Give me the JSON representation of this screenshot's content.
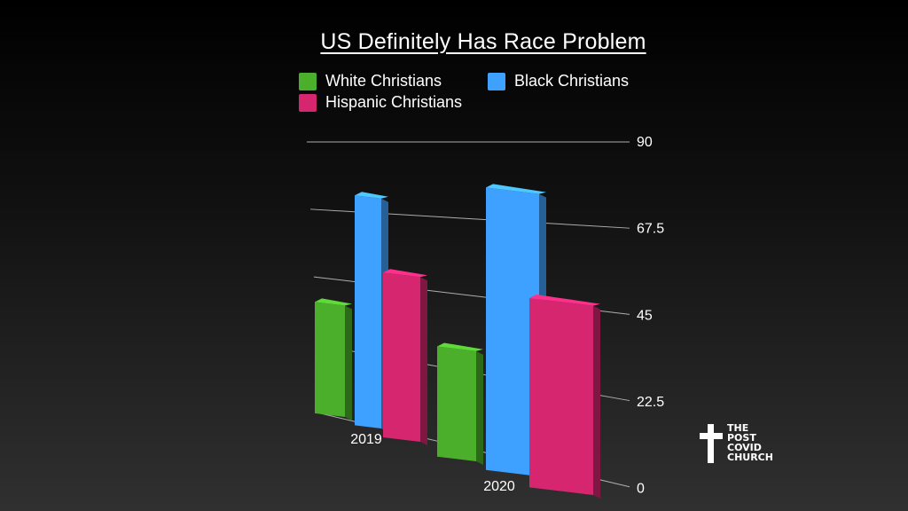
{
  "chart_data": {
    "type": "bar",
    "title": "US Definitely Has Race Problem",
    "categories": [
      "2019",
      "2020"
    ],
    "series": [
      {
        "name": "White Christians",
        "color": "#4caf2c",
        "values": [
          36,
          35
        ]
      },
      {
        "name": "Black Christians",
        "color": "#3ea0ff",
        "values": [
          73,
          88
        ]
      },
      {
        "name": "Hispanic Christians",
        "color": "#d6266f",
        "values": [
          53,
          60
        ]
      }
    ],
    "y_ticks": [
      "0",
      "22.5",
      "45",
      "67.5",
      "90"
    ],
    "ylim": [
      0,
      90
    ],
    "grid": true,
    "legend_position": "top"
  },
  "logo": {
    "text": "THE\nPOST\nCOVID\nCHURCH",
    "icon": "cross-icon"
  }
}
